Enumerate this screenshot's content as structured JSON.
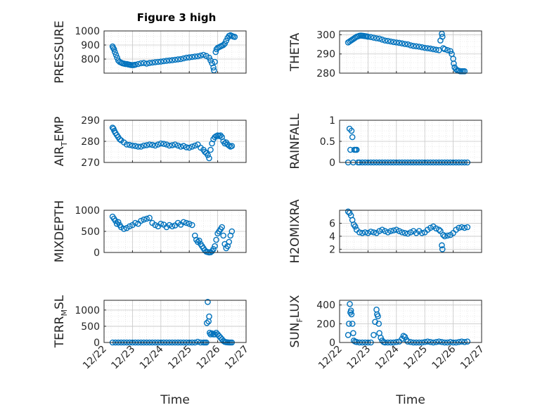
{
  "figure": {
    "title": "Figure 3 high"
  },
  "colors": {
    "marker": "#0072BD",
    "axis": "#262626",
    "grid": "#d9d9d9"
  },
  "chart_data": [
    {
      "type": "scatter",
      "ylabel": "PRESSURE",
      "ylim": [
        700,
        1000
      ],
      "yticks": [
        800,
        900,
        1000
      ],
      "xlabel": "",
      "xlim": [
        0,
        5
      ],
      "grid": true,
      "marker": "circle",
      "x": [
        0.3,
        0.32,
        0.35,
        0.38,
        0.42,
        0.46,
        0.5,
        0.55,
        0.6,
        0.65,
        0.7,
        0.75,
        0.8,
        0.85,
        0.9,
        0.95,
        1.0,
        1.05,
        1.1,
        1.2,
        1.3,
        1.4,
        1.5,
        1.6,
        1.7,
        1.8,
        1.9,
        2.0,
        2.1,
        2.2,
        2.3,
        2.4,
        2.5,
        2.6,
        2.7,
        2.8,
        2.9,
        3.0,
        3.1,
        3.2,
        3.3,
        3.4,
        3.5,
        3.6,
        3.7,
        3.75,
        3.8,
        3.85,
        3.87,
        3.9,
        3.93,
        3.96,
        4.0,
        4.05,
        4.1,
        4.15,
        4.2,
        4.25,
        4.3,
        4.35,
        4.4,
        4.45,
        4.5,
        4.55,
        4.6
      ],
      "y": [
        890,
        880,
        870,
        850,
        830,
        810,
        790,
        780,
        775,
        770,
        768,
        765,
        765,
        762,
        760,
        758,
        757,
        758,
        760,
        765,
        770,
        772,
        768,
        772,
        775,
        778,
        780,
        782,
        785,
        788,
        790,
        792,
        795,
        798,
        800,
        805,
        810,
        812,
        815,
        818,
        820,
        825,
        830,
        822,
        810,
        790,
        770,
        740,
        720,
        780,
        850,
        870,
        880,
        885,
        890,
        895,
        900,
        910,
        930,
        950,
        965,
        970,
        965,
        960,
        958
      ]
    },
    {
      "type": "scatter",
      "ylabel": "THETA",
      "ylim": [
        280,
        302
      ],
      "yticks": [
        280,
        290,
        300
      ],
      "xlabel": "",
      "xlim": [
        0,
        5
      ],
      "grid": true,
      "marker": "circle",
      "x": [
        0.3,
        0.35,
        0.4,
        0.45,
        0.5,
        0.55,
        0.6,
        0.65,
        0.7,
        0.75,
        0.8,
        0.85,
        0.9,
        0.95,
        1.0,
        1.1,
        1.2,
        1.3,
        1.4,
        1.5,
        1.6,
        1.7,
        1.8,
        1.9,
        2.0,
        2.1,
        2.2,
        2.3,
        2.4,
        2.5,
        2.6,
        2.7,
        2.8,
        2.9,
        3.0,
        3.1,
        3.2,
        3.3,
        3.4,
        3.5,
        3.55,
        3.6,
        3.62,
        3.65,
        3.7,
        3.8,
        3.9,
        3.95,
        4.0,
        4.02,
        4.05,
        4.1,
        4.15,
        4.2,
        4.25,
        4.3,
        4.35,
        4.4
      ],
      "y": [
        296,
        296.5,
        297,
        297.5,
        298,
        298.5,
        299,
        299.2,
        299.5,
        299.6,
        299.5,
        299.4,
        299.3,
        299.2,
        299.0,
        298.8,
        298.5,
        298.2,
        298.0,
        297.5,
        297.0,
        296.8,
        296.5,
        296.2,
        296.0,
        295.8,
        295.5,
        295.2,
        295.0,
        294.5,
        294.2,
        294.0,
        293.8,
        293.5,
        293.2,
        293.0,
        292.8,
        292.5,
        292.2,
        292.0,
        297.0,
        300.5,
        299.0,
        293.0,
        292.5,
        292.0,
        291.5,
        290.0,
        287.5,
        285.0,
        283.0,
        282.0,
        281.5,
        281.2,
        281.0,
        281.0,
        281.0,
        281.0
      ]
    },
    {
      "type": "scatter",
      "ylabel": "AIR_TEMP",
      "ylim": [
        270,
        290
      ],
      "yticks": [
        270,
        280,
        290
      ],
      "xlabel": "",
      "xlim": [
        0,
        5
      ],
      "grid": true,
      "marker": "circle",
      "x": [
        0.3,
        0.33,
        0.36,
        0.4,
        0.45,
        0.5,
        0.55,
        0.6,
        0.7,
        0.8,
        0.9,
        1.0,
        1.1,
        1.2,
        1.3,
        1.4,
        1.5,
        1.6,
        1.7,
        1.8,
        1.9,
        2.0,
        2.1,
        2.2,
        2.3,
        2.4,
        2.5,
        2.6,
        2.7,
        2.8,
        2.9,
        3.0,
        3.1,
        3.2,
        3.3,
        3.4,
        3.5,
        3.55,
        3.6,
        3.65,
        3.7,
        3.75,
        3.8,
        3.85,
        3.9,
        3.95,
        4.0,
        4.05,
        4.1,
        4.15,
        4.2,
        4.25,
        4.3,
        4.35,
        4.4,
        4.45,
        4.5
      ],
      "y": [
        286.5,
        286,
        285,
        284,
        283,
        282,
        281,
        280.5,
        279.5,
        278.5,
        278.3,
        278,
        277.8,
        277.5,
        277.5,
        278,
        278.2,
        278.5,
        278.3,
        278,
        278.5,
        279,
        278.8,
        278.5,
        278,
        278.2,
        278.5,
        278,
        277.5,
        277.8,
        277.2,
        277,
        277.5,
        278,
        278.5,
        277,
        276,
        275,
        274.5,
        273.5,
        272,
        276,
        279,
        281,
        282,
        282.5,
        282.8,
        282.5,
        282.8,
        282,
        280,
        279,
        279.5,
        278.5,
        278,
        277.5,
        277.8
      ]
    },
    {
      "type": "scatter",
      "ylabel": "RAINFALL",
      "ylim": [
        0,
        1
      ],
      "yticks": [
        0,
        0.5,
        1
      ],
      "xlabel": "",
      "xlim": [
        0,
        5
      ],
      "grid": true,
      "marker": "circle",
      "x": [
        0.3,
        0.35,
        0.38,
        0.42,
        0.45,
        0.48,
        0.52,
        0.56,
        0.6,
        0.65,
        0.7,
        0.8,
        0.9,
        1.0,
        1.1,
        1.2,
        1.3,
        1.4,
        1.5,
        1.6,
        1.7,
        1.8,
        1.9,
        2.0,
        2.1,
        2.2,
        2.3,
        2.4,
        2.5,
        2.6,
        2.7,
        2.8,
        2.9,
        3.0,
        3.1,
        3.2,
        3.3,
        3.4,
        3.5,
        3.6,
        3.7,
        3.8,
        3.9,
        4.0,
        4.1,
        4.2,
        4.3,
        4.4,
        4.5
      ],
      "y": [
        0,
        0.8,
        0.3,
        0.75,
        0.6,
        0.0,
        0.3,
        0.3,
        0.3,
        0,
        0,
        0,
        0,
        0,
        0,
        0,
        0,
        0,
        0,
        0,
        0,
        0,
        0,
        0,
        0,
        0,
        0,
        0,
        0,
        0,
        0,
        0,
        0,
        0,
        0,
        0,
        0,
        0,
        0,
        0,
        0,
        0,
        0,
        0,
        0,
        0,
        0,
        0,
        0
      ]
    },
    {
      "type": "scatter",
      "ylabel": "MIXDEPTH",
      "ylim": [
        0,
        1000
      ],
      "yticks": [
        0,
        500,
        1000
      ],
      "xlabel": "",
      "xlim": [
        0,
        5
      ],
      "grid": true,
      "marker": "circle",
      "x": [
        0.3,
        0.35,
        0.4,
        0.45,
        0.5,
        0.55,
        0.6,
        0.7,
        0.8,
        0.9,
        1.0,
        1.1,
        1.2,
        1.3,
        1.4,
        1.5,
        1.6,
        1.7,
        1.8,
        1.9,
        2.0,
        2.1,
        2.2,
        2.3,
        2.4,
        2.5,
        2.6,
        2.7,
        2.8,
        2.9,
        3.0,
        3.1,
        3.2,
        3.25,
        3.3,
        3.35,
        3.4,
        3.45,
        3.5,
        3.55,
        3.6,
        3.65,
        3.7,
        3.75,
        3.8,
        3.85,
        3.9,
        3.95,
        4.0,
        4.05,
        4.1,
        4.15,
        4.2,
        4.25,
        4.3,
        4.35,
        4.4,
        4.45,
        4.5
      ],
      "y": [
        850,
        800,
        750,
        680,
        720,
        650,
        600,
        560,
        580,
        620,
        650,
        700,
        680,
        750,
        780,
        800,
        820,
        700,
        650,
        620,
        680,
        660,
        600,
        650,
        620,
        640,
        700,
        660,
        720,
        700,
        680,
        650,
        400,
        300,
        250,
        280,
        200,
        150,
        100,
        50,
        20,
        10,
        0,
        5,
        30,
        80,
        150,
        300,
        450,
        500,
        550,
        600,
        400,
        200,
        100,
        150,
        250,
        400,
        500
      ]
    },
    {
      "type": "scatter",
      "ylabel": "H2OMIXRA",
      "ylim": [
        1.5,
        8
      ],
      "yticks": [
        2,
        4,
        6
      ],
      "xlabel": "",
      "xlim": [
        0,
        5
      ],
      "grid": true,
      "marker": "circle",
      "x": [
        0.3,
        0.35,
        0.4,
        0.45,
        0.5,
        0.55,
        0.6,
        0.7,
        0.8,
        0.9,
        1.0,
        1.1,
        1.2,
        1.3,
        1.4,
        1.5,
        1.6,
        1.7,
        1.8,
        1.9,
        2.0,
        2.1,
        2.2,
        2.3,
        2.4,
        2.5,
        2.6,
        2.7,
        2.8,
        2.9,
        3.0,
        3.1,
        3.2,
        3.3,
        3.4,
        3.5,
        3.55,
        3.6,
        3.62,
        3.65,
        3.7,
        3.8,
        3.9,
        4.0,
        4.1,
        4.2,
        4.3,
        4.4,
        4.5
      ],
      "y": [
        7.8,
        7.6,
        7.2,
        6.5,
        5.8,
        5.5,
        5.0,
        4.6,
        4.5,
        4.6,
        4.5,
        4.7,
        4.6,
        4.5,
        4.8,
        5.0,
        4.8,
        4.6,
        4.8,
        4.9,
        5.0,
        4.8,
        4.6,
        4.5,
        4.4,
        4.6,
        4.8,
        4.5,
        4.8,
        4.5,
        4.6,
        5.0,
        5.3,
        5.5,
        5.2,
        5.0,
        4.8,
        2.6,
        2.0,
        4.2,
        4.0,
        4.1,
        4.2,
        4.5,
        5.0,
        5.3,
        5.4,
        5.3,
        5.4
      ]
    },
    {
      "type": "scatter",
      "ylabel": "TERR_MSL",
      "ylim": [
        0,
        1300
      ],
      "yticks": [
        0,
        500,
        1000
      ],
      "xlabel": "Time",
      "xlim": [
        0,
        5
      ],
      "xticks": [
        "12/22",
        "12/23",
        "12/24",
        "12/25",
        "12/26",
        "12/27"
      ],
      "grid": true,
      "marker": "circle",
      "x": [
        0.3,
        0.4,
        0.5,
        0.6,
        0.7,
        0.8,
        0.9,
        1.0,
        1.1,
        1.2,
        1.3,
        1.4,
        1.5,
        1.6,
        1.7,
        1.8,
        1.9,
        2.0,
        2.1,
        2.2,
        2.3,
        2.4,
        2.5,
        2.6,
        2.7,
        2.8,
        2.9,
        3.0,
        3.1,
        3.2,
        3.3,
        3.4,
        3.5,
        3.55,
        3.6,
        3.62,
        3.65,
        3.68,
        3.7,
        3.72,
        3.75,
        3.8,
        3.85,
        3.9,
        3.95,
        4.0,
        4.05,
        4.1,
        4.15,
        4.2,
        4.25,
        4.3,
        4.35,
        4.4,
        4.45,
        4.5
      ],
      "y": [
        0,
        0,
        0,
        0,
        0,
        0,
        0,
        0,
        0,
        0,
        0,
        0,
        0,
        0,
        0,
        0,
        0,
        0,
        0,
        0,
        0,
        0,
        0,
        0,
        0,
        0,
        0,
        0,
        0,
        0,
        20,
        0,
        0,
        0,
        0,
        600,
        1250,
        650,
        800,
        300,
        250,
        280,
        250,
        250,
        300,
        250,
        200,
        150,
        100,
        50,
        20,
        10,
        5,
        0,
        0,
        0
      ]
    },
    {
      "type": "scatter",
      "ylabel": "SUN_FLUX",
      "ylim": [
        0,
        450
      ],
      "yticks": [
        0,
        200,
        400
      ],
      "xlabel": "Time",
      "xlim": [
        0,
        5
      ],
      "xticks": [
        "12/22",
        "12/23",
        "12/24",
        "12/25",
        "12/26",
        "12/27"
      ],
      "grid": true,
      "marker": "circle",
      "x": [
        0.3,
        0.33,
        0.36,
        0.38,
        0.4,
        0.42,
        0.45,
        0.48,
        0.5,
        0.55,
        0.6,
        0.7,
        0.8,
        0.9,
        1.0,
        1.1,
        1.2,
        1.25,
        1.3,
        1.32,
        1.35,
        1.38,
        1.4,
        1.45,
        1.5,
        1.55,
        1.6,
        1.7,
        1.8,
        1.9,
        2.0,
        2.1,
        2.2,
        2.25,
        2.3,
        2.35,
        2.4,
        2.5,
        2.6,
        2.7,
        2.8,
        2.9,
        3.0,
        3.1,
        3.2,
        3.3,
        3.4,
        3.5,
        3.6,
        3.7,
        3.8,
        3.9,
        4.0,
        4.1,
        4.2,
        4.3,
        4.4,
        4.5
      ],
      "y": [
        80,
        200,
        410,
        320,
        340,
        300,
        200,
        100,
        20,
        10,
        5,
        0,
        0,
        0,
        0,
        0,
        80,
        220,
        350,
        300,
        280,
        200,
        100,
        50,
        20,
        5,
        0,
        0,
        0,
        0,
        5,
        10,
        40,
        70,
        60,
        30,
        10,
        5,
        0,
        0,
        0,
        0,
        5,
        10,
        5,
        0,
        5,
        10,
        5,
        0,
        0,
        5,
        0,
        0,
        5,
        10,
        5,
        10
      ]
    }
  ]
}
